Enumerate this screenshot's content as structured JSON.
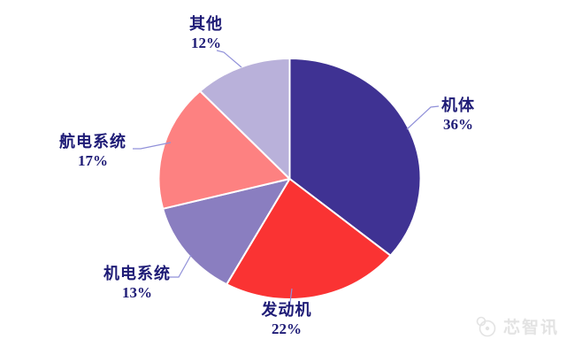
{
  "chart_data": {
    "type": "pie",
    "title": "",
    "categories": [
      "机体",
      "发动机",
      "机电系统",
      "航电系统",
      "其他"
    ],
    "values": [
      36,
      22,
      13,
      17,
      12
    ],
    "unit": "%",
    "colors": [
      "#3F3293",
      "#FA3333",
      "#8A7EC0",
      "#FD8181",
      "#B9B1DA"
    ],
    "start_angle_deg": 0,
    "direction": "clockwise",
    "legend": "none",
    "data_labels": [
      "机体 36%",
      "发动机 22%",
      "机电系统 13%",
      "航电系统 17%",
      "其他 12%"
    ]
  },
  "labels": {
    "jiti": {
      "name": "机体",
      "value": "36%"
    },
    "fadongji": {
      "name": "发动机",
      "value": "22%"
    },
    "jidian": {
      "name": "机电系统",
      "value": "13%"
    },
    "hangdian": {
      "name": "航电系统",
      "value": "17%"
    },
    "qita": {
      "name": "其他",
      "value": "12%"
    }
  },
  "watermark": {
    "text": "芯智讯"
  },
  "colors": {
    "label_text": "#1E1B76",
    "leader_line": "#9191D9",
    "slice_border": "#FFFFFF",
    "background": "#FFFFFF"
  }
}
